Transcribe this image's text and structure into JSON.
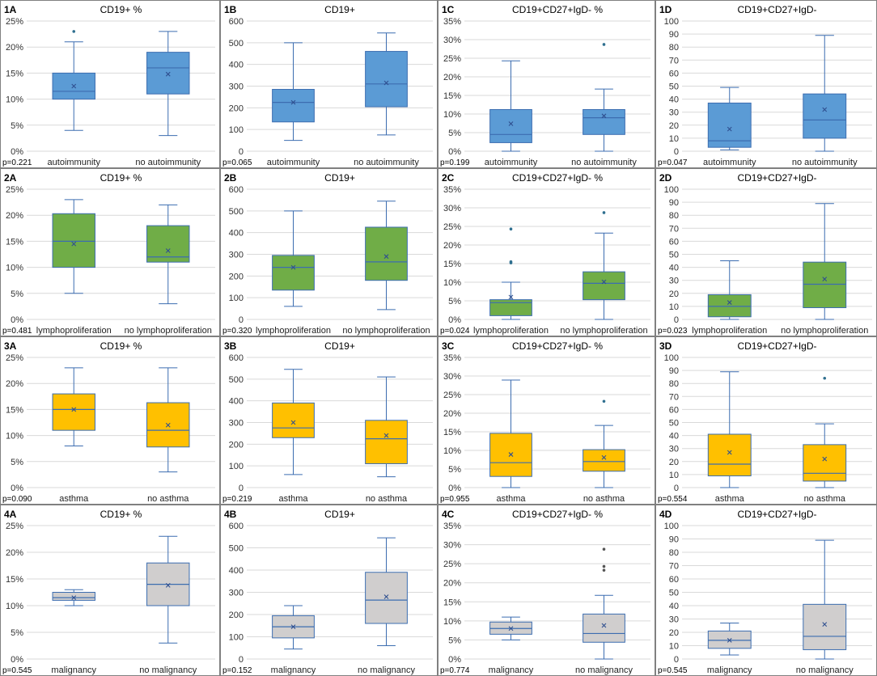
{
  "colors": {
    "blue": "#5b9bd5",
    "green": "#70ad47",
    "yellow": "#ffc000",
    "gray": "#d0cece",
    "edge": "#3c6db0",
    "sig": "#ff0000",
    "grid": "#d9d9d9",
    "border": "#808080"
  },
  "chart_data": [
    {
      "id": "1A",
      "title": "CD19+ %",
      "type": "box",
      "color": "blue",
      "ylim": [
        0,
        25
      ],
      "yticks": [
        "0%",
        "5%",
        "10%",
        "15%",
        "20%",
        "25%"
      ],
      "pvalue": "p=0.221",
      "significant": false,
      "groups": [
        {
          "label": "autoimmunity",
          "min": 4,
          "q1": 10,
          "median": 11.5,
          "q3": 15,
          "max": 21,
          "mean": 12.5,
          "outliers": [
            23
          ]
        },
        {
          "label": "no autoimmunity",
          "min": 3,
          "q1": 11,
          "median": 16,
          "q3": 19,
          "max": 23,
          "mean": 14.8,
          "outliers": []
        }
      ]
    },
    {
      "id": "1B",
      "title": "CD19+",
      "type": "box",
      "color": "blue",
      "ylim": [
        0,
        600
      ],
      "yticks": [
        "0",
        "100",
        "200",
        "300",
        "400",
        "500",
        "600"
      ],
      "pvalue": "p=0.065",
      "significant": false,
      "groups": [
        {
          "label": "autoimmunity",
          "min": 50,
          "q1": 135,
          "median": 225,
          "q3": 285,
          "max": 500,
          "mean": 225,
          "outliers": []
        },
        {
          "label": "no autoimmunity",
          "min": 75,
          "q1": 205,
          "median": 310,
          "q3": 460,
          "max": 545,
          "mean": 315,
          "outliers": []
        }
      ]
    },
    {
      "id": "1C",
      "title": "CD19+CD27+IgD- %",
      "type": "box",
      "color": "blue",
      "ylim": [
        0,
        35
      ],
      "yticks": [
        "0%",
        "5%",
        "10%",
        "15%",
        "20%",
        "25%",
        "30%",
        "35%"
      ],
      "pvalue": "p=0.199",
      "significant": false,
      "groups": [
        {
          "label": "autoimmunity",
          "min": 0,
          "q1": 2.3,
          "median": 4.5,
          "q3": 11.2,
          "max": 24.3,
          "mean": 7.4,
          "outliers": []
        },
        {
          "label": "no autoimmunity",
          "min": 0,
          "q1": 4.5,
          "median": 9,
          "q3": 11.2,
          "max": 16.7,
          "mean": 9.5,
          "outliers": [
            28.7
          ]
        }
      ]
    },
    {
      "id": "1D",
      "title": "CD19+CD27+IgD-",
      "type": "box",
      "color": "blue",
      "ylim": [
        0,
        100
      ],
      "yticks": [
        "0",
        "10",
        "20",
        "30",
        "40",
        "50",
        "60",
        "70",
        "80",
        "90",
        "100"
      ],
      "pvalue": "p=0.047",
      "significant": true,
      "groups": [
        {
          "label": "autoimmunity",
          "min": 1,
          "q1": 3,
          "median": 8,
          "q3": 37,
          "max": 49,
          "mean": 17,
          "outliers": []
        },
        {
          "label": "no autoimmunity",
          "min": 0,
          "q1": 10,
          "median": 24,
          "q3": 44,
          "max": 89,
          "mean": 32,
          "outliers": []
        }
      ]
    },
    {
      "id": "2A",
      "title": "CD19+ %",
      "type": "box",
      "color": "green",
      "ylim": [
        0,
        25
      ],
      "yticks": [
        "0%",
        "5%",
        "10%",
        "15%",
        "20%",
        "25%"
      ],
      "pvalue": "p=0.481",
      "significant": false,
      "groups": [
        {
          "label": "lymphoproliferation",
          "min": 5,
          "q1": 10,
          "median": 15,
          "q3": 20.3,
          "max": 23,
          "mean": 14.5,
          "outliers": []
        },
        {
          "label": "no lymphoproliferation",
          "min": 3,
          "q1": 11,
          "median": 12,
          "q3": 18,
          "max": 22,
          "mean": 13.2,
          "outliers": []
        }
      ]
    },
    {
      "id": "2B",
      "title": "CD19+",
      "type": "box",
      "color": "green",
      "ylim": [
        0,
        600
      ],
      "yticks": [
        "0",
        "100",
        "200",
        "300",
        "400",
        "500",
        "600"
      ],
      "pvalue": "p=0.320",
      "significant": false,
      "groups": [
        {
          "label": "lymphoproliferation",
          "min": 60,
          "q1": 135,
          "median": 240,
          "q3": 295,
          "max": 500,
          "mean": 240,
          "outliers": []
        },
        {
          "label": "no lymphoproliferation",
          "min": 45,
          "q1": 180,
          "median": 265,
          "q3": 425,
          "max": 545,
          "mean": 290,
          "outliers": []
        }
      ]
    },
    {
      "id": "2C",
      "title": "CD19+CD27+IgD- %",
      "type": "box",
      "color": "green",
      "ylim": [
        0,
        35
      ],
      "yticks": [
        "0%",
        "5%",
        "10%",
        "15%",
        "20%",
        "25%",
        "30%",
        "35%"
      ],
      "pvalue": "p=0.024",
      "significant": true,
      "groups": [
        {
          "label": "lymphoproliferation",
          "min": 0,
          "q1": 1,
          "median": 4.5,
          "q3": 5.3,
          "max": 10,
          "mean": 6,
          "outliers": [
            15.2,
            15.5,
            24.3
          ]
        },
        {
          "label": "no lymphoproliferation",
          "min": 0,
          "q1": 5.3,
          "median": 9.7,
          "q3": 12.8,
          "max": 23.2,
          "mean": 10.1,
          "outliers": [
            28.7
          ]
        }
      ]
    },
    {
      "id": "2D",
      "title": "CD19+CD27+IgD-",
      "type": "box",
      "color": "green",
      "ylim": [
        0,
        100
      ],
      "yticks": [
        "0",
        "10",
        "20",
        "30",
        "40",
        "50",
        "60",
        "70",
        "80",
        "90",
        "100"
      ],
      "pvalue": "p=0.023",
      "significant": true,
      "groups": [
        {
          "label": "lymphoproliferation",
          "min": 0,
          "q1": 2,
          "median": 10,
          "q3": 19,
          "max": 45,
          "mean": 13,
          "outliers": []
        },
        {
          "label": "no lymphoproliferation",
          "min": 0,
          "q1": 9,
          "median": 27,
          "q3": 44,
          "max": 89,
          "mean": 31,
          "outliers": []
        }
      ]
    },
    {
      "id": "3A",
      "title": "CD19+ %",
      "type": "box",
      "color": "yellow",
      "ylim": [
        0,
        25
      ],
      "yticks": [
        "0%",
        "5%",
        "10%",
        "15%",
        "20%",
        "25%"
      ],
      "pvalue": "p=0.090",
      "significant": false,
      "groups": [
        {
          "label": "asthma",
          "min": 8,
          "q1": 11,
          "median": 15,
          "q3": 18,
          "max": 23,
          "mean": 15,
          "outliers": []
        },
        {
          "label": "no asthma",
          "min": 3,
          "q1": 7.8,
          "median": 11,
          "q3": 16.3,
          "max": 23,
          "mean": 12,
          "outliers": []
        }
      ]
    },
    {
      "id": "3B",
      "title": "CD19+",
      "type": "box",
      "color": "yellow",
      "ylim": [
        0,
        600
      ],
      "yticks": [
        "0",
        "100",
        "200",
        "300",
        "400",
        "500",
        "600"
      ],
      "pvalue": "p=0.219",
      "significant": false,
      "groups": [
        {
          "label": "asthma",
          "min": 60,
          "q1": 230,
          "median": 275,
          "q3": 390,
          "max": 545,
          "mean": 300,
          "outliers": []
        },
        {
          "label": "no asthma",
          "min": 50,
          "q1": 110,
          "median": 225,
          "q3": 310,
          "max": 510,
          "mean": 240,
          "outliers": []
        }
      ]
    },
    {
      "id": "3C",
      "title": "CD19+CD27+IgD- %",
      "type": "box",
      "color": "yellow",
      "ylim": [
        0,
        35
      ],
      "yticks": [
        "0%",
        "5%",
        "10%",
        "15%",
        "20%",
        "25%",
        "30%",
        "35%"
      ],
      "pvalue": "p=0.955",
      "significant": false,
      "groups": [
        {
          "label": "asthma",
          "min": 0,
          "q1": 3,
          "median": 6.7,
          "q3": 14.6,
          "max": 28.9,
          "mean": 8.9,
          "outliers": []
        },
        {
          "label": "no asthma",
          "min": 0,
          "q1": 4.4,
          "median": 7,
          "q3": 10.2,
          "max": 16.7,
          "mean": 8.1,
          "outliers": [
            23.2
          ]
        }
      ]
    },
    {
      "id": "3D",
      "title": "CD19+CD27+IgD-",
      "type": "box",
      "color": "yellow",
      "ylim": [
        0,
        100
      ],
      "yticks": [
        "0",
        "10",
        "20",
        "30",
        "40",
        "50",
        "60",
        "70",
        "80",
        "90",
        "100"
      ],
      "pvalue": "p=0.554",
      "significant": false,
      "groups": [
        {
          "label": "asthma",
          "min": 0,
          "q1": 9,
          "median": 18,
          "q3": 41,
          "max": 89,
          "mean": 27,
          "outliers": []
        },
        {
          "label": "no asthma",
          "min": 0,
          "q1": 5,
          "median": 11,
          "q3": 33,
          "max": 49,
          "mean": 22,
          "outliers": [
            84
          ]
        }
      ]
    },
    {
      "id": "4A",
      "title": "CD19+ %",
      "type": "box",
      "color": "gray",
      "ylim": [
        0,
        25
      ],
      "yticks": [
        "0%",
        "5%",
        "10%",
        "15%",
        "20%",
        "25%"
      ],
      "pvalue": "p=0.545",
      "significant": false,
      "groups": [
        {
          "label": "malignancy",
          "min": 10,
          "q1": 11,
          "median": 11.5,
          "q3": 12.5,
          "max": 13,
          "mean": 11.5,
          "outliers": []
        },
        {
          "label": "no malignancy",
          "min": 3,
          "q1": 10,
          "median": 14,
          "q3": 18,
          "max": 23,
          "mean": 13.8,
          "outliers": []
        }
      ]
    },
    {
      "id": "4B",
      "title": "CD19+",
      "type": "box",
      "color": "gray",
      "ylim": [
        0,
        600
      ],
      "yticks": [
        "0",
        "100",
        "200",
        "300",
        "400",
        "500",
        "600"
      ],
      "pvalue": "p=0.152",
      "significant": false,
      "groups": [
        {
          "label": "malignancy",
          "min": 45,
          "q1": 95,
          "median": 145,
          "q3": 195,
          "max": 240,
          "mean": 145,
          "outliers": []
        },
        {
          "label": "no malignancy",
          "min": 60,
          "q1": 160,
          "median": 265,
          "q3": 390,
          "max": 545,
          "mean": 280,
          "outliers": []
        }
      ]
    },
    {
      "id": "4C",
      "title": "CD19+CD27+IgD- %",
      "type": "box",
      "color": "gray",
      "ylim": [
        0,
        35
      ],
      "yticks": [
        "0%",
        "5%",
        "10%",
        "15%",
        "20%",
        "25%",
        "30%",
        "35%"
      ],
      "pvalue": "p=0.774",
      "significant": false,
      "groups": [
        {
          "label": "malignancy",
          "min": 5,
          "q1": 6.5,
          "median": 8,
          "q3": 9.7,
          "max": 11,
          "mean": 8,
          "outliers": []
        },
        {
          "label": "no malignancy",
          "min": 0,
          "q1": 4.4,
          "median": 6.7,
          "q3": 11.8,
          "max": 16.7,
          "mean": 8.8,
          "outliers": [
            23.3,
            24.3,
            28.8
          ]
        }
      ]
    },
    {
      "id": "4D",
      "title": "CD19+CD27+IgD-",
      "type": "box",
      "color": "gray",
      "ylim": [
        0,
        100
      ],
      "yticks": [
        "0",
        "10",
        "20",
        "30",
        "40",
        "50",
        "60",
        "70",
        "80",
        "90",
        "100"
      ],
      "pvalue": "p=0.545",
      "significant": false,
      "groups": [
        {
          "label": "malignancy",
          "min": 3,
          "q1": 8,
          "median": 14,
          "q3": 21,
          "max": 27,
          "mean": 14,
          "outliers": []
        },
        {
          "label": "no malignancy",
          "min": 0,
          "q1": 7,
          "median": 17,
          "q3": 41,
          "max": 89,
          "mean": 26,
          "outliers": []
        }
      ]
    }
  ]
}
